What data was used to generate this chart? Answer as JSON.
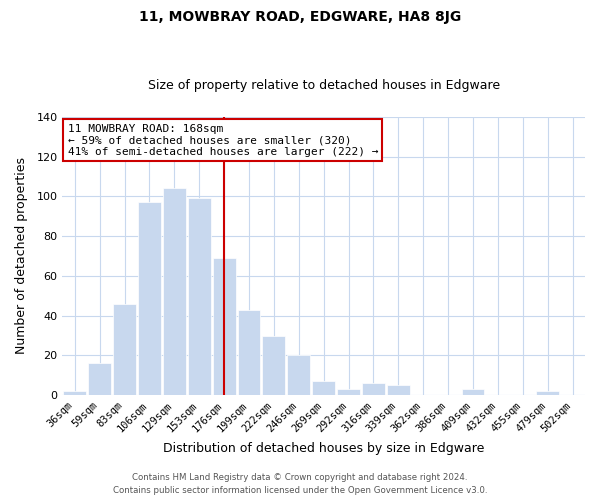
{
  "title": "11, MOWBRAY ROAD, EDGWARE, HA8 8JG",
  "subtitle": "Size of property relative to detached houses in Edgware",
  "xlabel": "Distribution of detached houses by size in Edgware",
  "ylabel": "Number of detached properties",
  "bar_labels": [
    "36sqm",
    "59sqm",
    "83sqm",
    "106sqm",
    "129sqm",
    "153sqm",
    "176sqm",
    "199sqm",
    "222sqm",
    "246sqm",
    "269sqm",
    "292sqm",
    "316sqm",
    "339sqm",
    "362sqm",
    "386sqm",
    "409sqm",
    "432sqm",
    "455sqm",
    "479sqm",
    "502sqm"
  ],
  "bar_values": [
    2,
    16,
    46,
    97,
    104,
    99,
    69,
    43,
    30,
    20,
    7,
    3,
    6,
    5,
    0,
    0,
    3,
    0,
    0,
    2,
    0
  ],
  "bar_color": "#c8d8ee",
  "highlight_bar_index": 6,
  "highlight_line_color": "#cc0000",
  "annotation_title": "11 MOWBRAY ROAD: 168sqm",
  "annotation_line1": "← 59% of detached houses are smaller (320)",
  "annotation_line2": "41% of semi-detached houses are larger (222) →",
  "annotation_box_color": "#ffffff",
  "annotation_box_edge_color": "#cc0000",
  "ylim": [
    0,
    140
  ],
  "yticks": [
    0,
    20,
    40,
    60,
    80,
    100,
    120,
    140
  ],
  "footer_line1": "Contains HM Land Registry data © Crown copyright and database right 2024.",
  "footer_line2": "Contains public sector information licensed under the Open Government Licence v3.0.",
  "grid_color": "#c8d8ee",
  "background_color": "#ffffff"
}
